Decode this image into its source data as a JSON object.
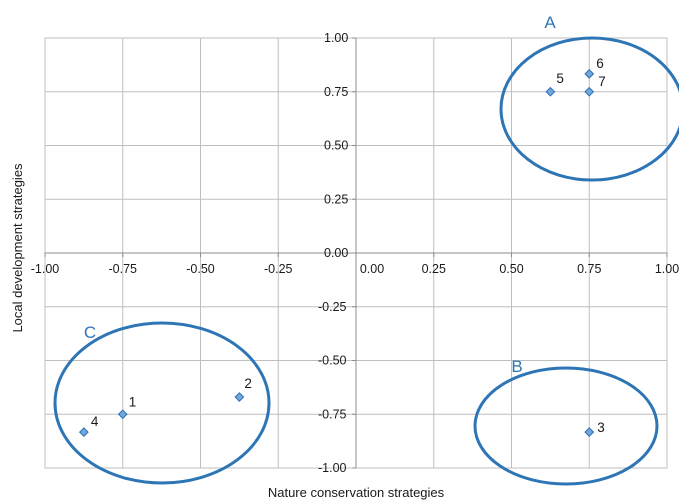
{
  "chart_data": {
    "type": "scatter",
    "xlabel": "Nature conservation strategies",
    "ylabel": "Local development strategies",
    "xlim": [
      -1.0,
      1.0
    ],
    "ylim": [
      -1.0,
      1.0
    ],
    "x_ticks": [
      "-1.00",
      "-0.75",
      "-0.50",
      "-0.25",
      "0.00",
      "0.25",
      "0.50",
      "0.75",
      "1.00"
    ],
    "y_ticks": [
      "1.00",
      "0.75",
      "0.50",
      "0.25",
      "0.00",
      "-0.25",
      "-0.50",
      "-0.75",
      "-1.00"
    ],
    "x_tick_values": [
      -1.0,
      -0.75,
      -0.5,
      -0.25,
      0.0,
      0.25,
      0.5,
      0.75,
      1.0
    ],
    "y_tick_values": [
      1.0,
      0.75,
      0.5,
      0.25,
      0.0,
      -0.25,
      -0.5,
      -0.75,
      -1.0
    ],
    "grid": true,
    "marker_color": "#6fa8dc",
    "marker_edge_color": "#2f6db3",
    "group_color": "#2e75b6",
    "points": [
      {
        "label": "1",
        "x": -0.75,
        "y": -0.75
      },
      {
        "label": "2",
        "x": -0.375,
        "y": -0.67
      },
      {
        "label": "3",
        "x": 0.75,
        "y": -0.833
      },
      {
        "label": "4",
        "x": -0.875,
        "y": -0.833
      },
      {
        "label": "5",
        "x": 0.625,
        "y": 0.75
      },
      {
        "label": "6",
        "x": 0.75,
        "y": 0.833
      },
      {
        "label": "7",
        "x": 0.75,
        "y": 0.75
      }
    ],
    "groups": [
      {
        "label": "A",
        "members": [
          "5",
          "6",
          "7"
        ]
      },
      {
        "label": "B",
        "members": [
          "3"
        ]
      },
      {
        "label": "C",
        "members": [
          "1",
          "2",
          "4"
        ]
      }
    ]
  }
}
